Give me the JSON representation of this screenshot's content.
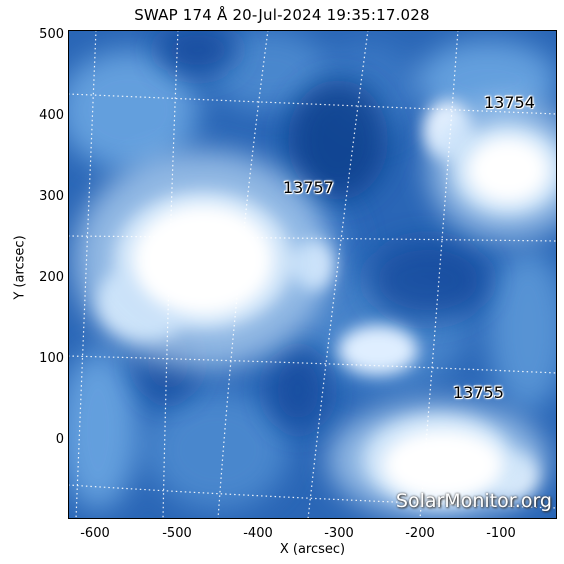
{
  "title": "SWAP 174 Å 20-Jul-2024 19:35:17.028",
  "axes": {
    "xlabel": "X (arcsec)",
    "ylabel": "Y (arcsec)",
    "xticks": [
      "-600",
      "-500",
      "-400",
      "-300",
      "-200",
      "-100"
    ],
    "yticks": [
      "500",
      "400",
      "300",
      "200",
      "100",
      "0"
    ]
  },
  "active_regions": [
    "13754",
    "13757",
    "13755"
  ],
  "watermark": "SolarMonitor.org",
  "colors": {
    "base": "#1f5fb0",
    "bright": "#ffffff",
    "mid": "#5a95d6"
  }
}
